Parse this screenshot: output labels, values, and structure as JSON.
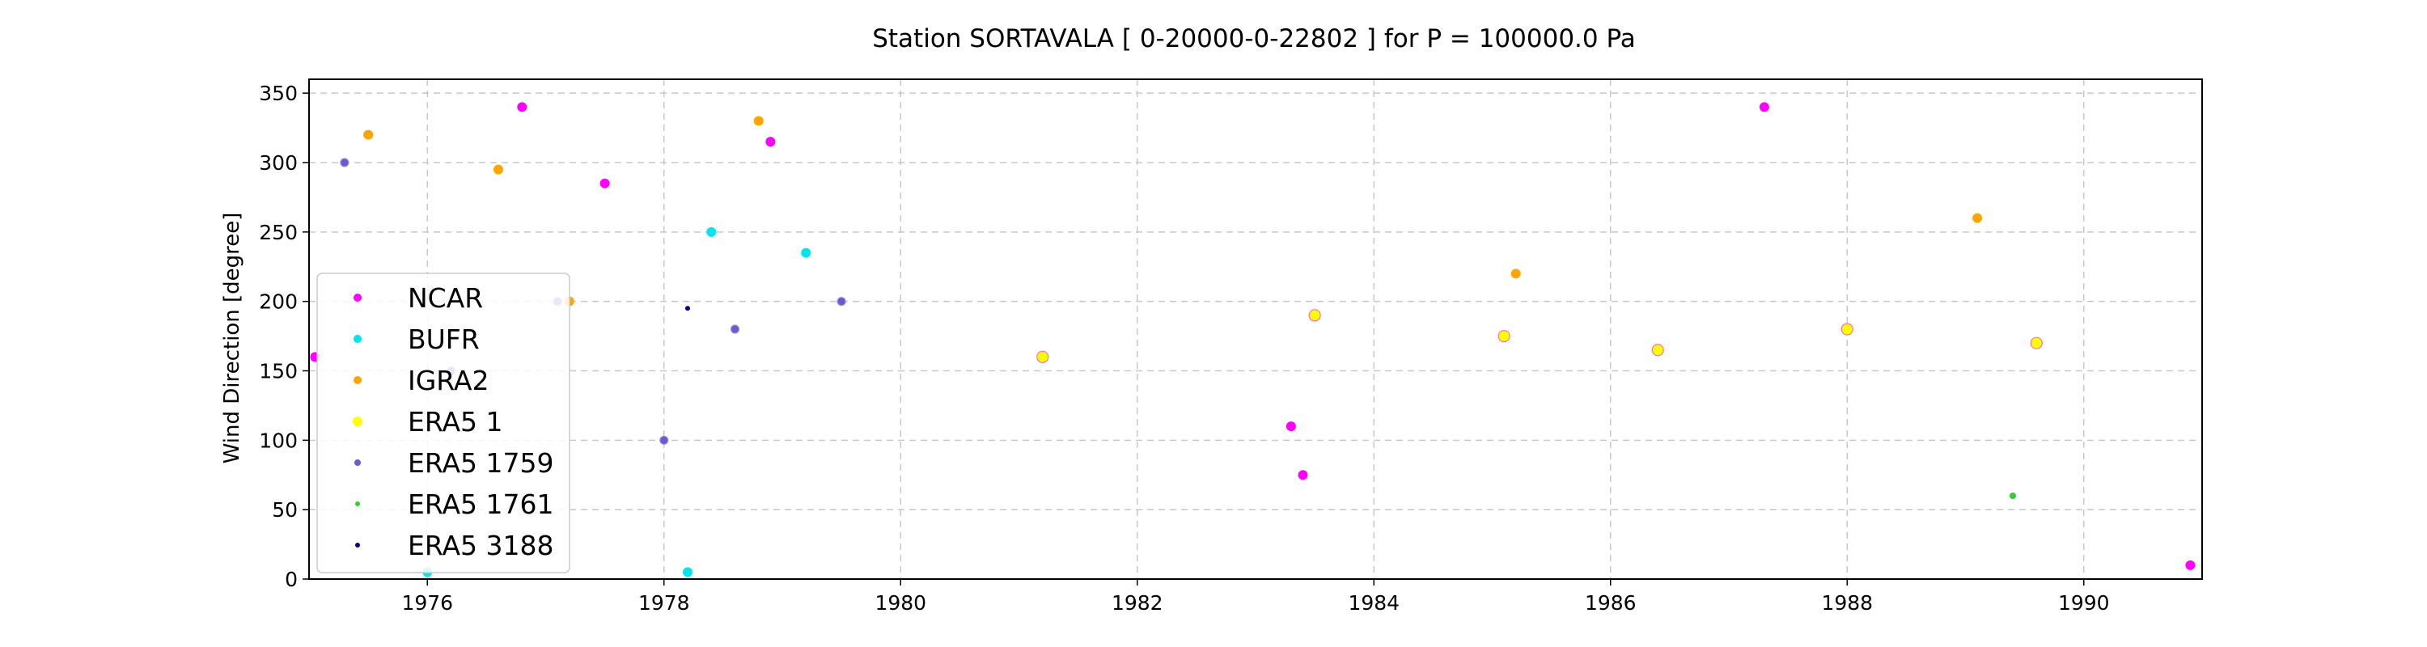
{
  "chart_data": {
    "type": "scatter",
    "title": "Station  SORTAVALA [ 0-20000-0-22802 ]  for P = 100000.0 Pa",
    "xlabel": "",
    "ylabel": "Wind Direction [degree]",
    "xlim": [
      1975.0,
      1991.0
    ],
    "ylim": [
      0,
      360
    ],
    "x_ticks": [
      {
        "value": 1976,
        "label": "1976"
      },
      {
        "value": 1978,
        "label": "1978"
      },
      {
        "value": 1980,
        "label": "1980"
      },
      {
        "value": 1982,
        "label": "1982"
      },
      {
        "value": 1984,
        "label": "1984"
      },
      {
        "value": 1986,
        "label": "1986"
      },
      {
        "value": 1988,
        "label": "1988"
      },
      {
        "value": 1990,
        "label": "1990"
      }
    ],
    "y_ticks": [
      {
        "value": 0,
        "label": "0"
      },
      {
        "value": 50,
        "label": "50"
      },
      {
        "value": 100,
        "label": "100"
      },
      {
        "value": 150,
        "label": "150"
      },
      {
        "value": 200,
        "label": "200"
      },
      {
        "value": 250,
        "label": "250"
      },
      {
        "value": 300,
        "label": "300"
      },
      {
        "value": 350,
        "label": "350"
      }
    ],
    "grid": true,
    "legend_position": "center-left",
    "series": [
      {
        "name": "NCAR",
        "color": "#ff00ff",
        "points": [
          [
            1975.05,
            160
          ],
          [
            1976.8,
            340
          ],
          [
            1977.5,
            285
          ],
          [
            1978.9,
            315
          ],
          [
            1983.3,
            110
          ],
          [
            1983.4,
            75
          ],
          [
            1987.3,
            340
          ],
          [
            1990.9,
            10
          ]
        ]
      },
      {
        "name": "BUFR",
        "color": "#00e5ee",
        "points": [
          [
            1976.0,
            5
          ],
          [
            1978.2,
            5
          ],
          [
            1978.4,
            250
          ],
          [
            1978.9,
            315
          ],
          [
            1979.2,
            235
          ]
        ]
      },
      {
        "name": "IGRA2",
        "color": "#ffa500",
        "points": [
          [
            1975.5,
            320
          ],
          [
            1976.6,
            295
          ],
          [
            1977.2,
            200
          ],
          [
            1978.8,
            330
          ],
          [
            1985.2,
            220
          ],
          [
            1989.1,
            260
          ]
        ]
      },
      {
        "name": "ERA5 1",
        "color": "#ffff00",
        "points": [
          [
            1981.2,
            160
          ],
          [
            1983.5,
            190
          ],
          [
            1985.1,
            175
          ],
          [
            1986.4,
            165
          ],
          [
            1988.0,
            180
          ],
          [
            1989.6,
            170
          ]
        ]
      },
      {
        "name": "ERA5 1759",
        "color": "#6a5acd",
        "points": [
          [
            1975.3,
            300
          ],
          [
            1976.2,
            150
          ],
          [
            1977.1,
            200
          ],
          [
            1978.0,
            100
          ],
          [
            1978.6,
            180
          ],
          [
            1979.5,
            200
          ]
        ]
      },
      {
        "name": "ERA5 1761",
        "color": "#32cd32",
        "points": [
          [
            1989.4,
            60
          ]
        ]
      },
      {
        "name": "ERA5 3188",
        "color": "#00008b",
        "points": [
          [
            1978.2,
            195
          ]
        ]
      }
    ]
  }
}
